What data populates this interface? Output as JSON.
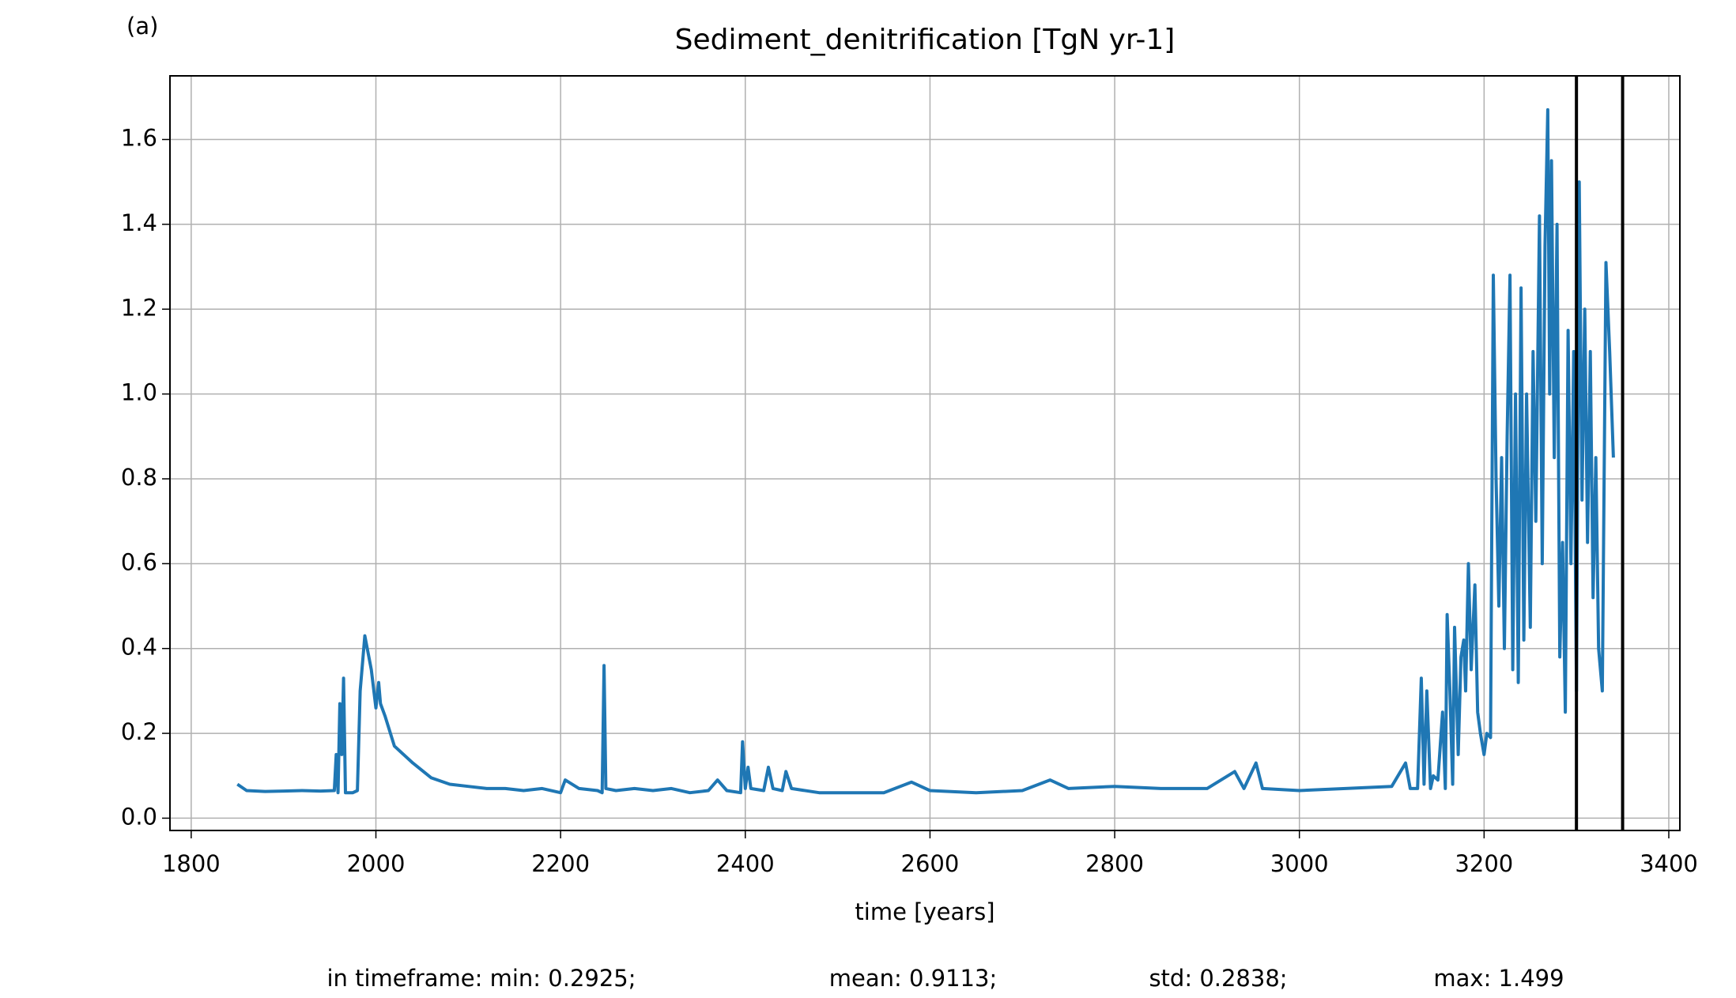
{
  "chart_data": {
    "type": "line",
    "title": "Sediment_denitrification [TgN yr-1]",
    "panel_label": "(a)",
    "x_label": "time [years]",
    "annotations": [
      "in timeframe: min: 0.2925;",
      "mean: 0.9113;",
      "std: 0.2838;",
      "max: 1.499"
    ],
    "x": [
      1850,
      1860,
      1880,
      1900,
      1920,
      1940,
      1955,
      1957,
      1959,
      1961,
      1963,
      1965,
      1967,
      1975,
      1980,
      1983,
      1988,
      1995,
      2000,
      2003,
      2005,
      2010,
      2020,
      2040,
      2060,
      2080,
      2100,
      2120,
      2140,
      2160,
      2180,
      2200,
      2205,
      2220,
      2240,
      2245,
      2247,
      2249,
      2260,
      2280,
      2300,
      2320,
      2340,
      2360,
      2370,
      2380,
      2395,
      2397,
      2400,
      2403,
      2406,
      2420,
      2425,
      2430,
      2440,
      2444,
      2450,
      2480,
      2500,
      2550,
      2580,
      2600,
      2650,
      2700,
      2730,
      2750,
      2800,
      2850,
      2900,
      2930,
      2940,
      2953,
      2960,
      3000,
      3050,
      3100,
      3115,
      3120,
      3128,
      3132,
      3135,
      3138,
      3142,
      3145,
      3150,
      3155,
      3158,
      3160,
      3163,
      3166,
      3168,
      3172,
      3175,
      3178,
      3180,
      3183,
      3186,
      3190,
      3193,
      3196,
      3200,
      3203,
      3207,
      3210,
      3213,
      3216,
      3219,
      3222,
      3225,
      3228,
      3231,
      3234,
      3237,
      3240,
      3243,
      3246,
      3250,
      3253,
      3256,
      3260,
      3263,
      3266,
      3269,
      3271,
      3273,
      3276,
      3279,
      3282,
      3285,
      3288,
      3291,
      3294,
      3297,
      3300,
      3303,
      3306,
      3309,
      3312,
      3315,
      3318,
      3321,
      3324,
      3328,
      3332,
      3336,
      3340
    ],
    "series": [
      {
        "name": "Sediment_denitrification",
        "color": "#1f77b4",
        "values": [
          0.08,
          0.065,
          0.063,
          0.064,
          0.065,
          0.064,
          0.065,
          0.15,
          0.06,
          0.27,
          0.15,
          0.33,
          0.06,
          0.06,
          0.065,
          0.3,
          0.43,
          0.35,
          0.26,
          0.32,
          0.27,
          0.24,
          0.17,
          0.13,
          0.095,
          0.08,
          0.075,
          0.07,
          0.07,
          0.065,
          0.07,
          0.06,
          0.09,
          0.07,
          0.065,
          0.06,
          0.36,
          0.07,
          0.065,
          0.07,
          0.065,
          0.07,
          0.06,
          0.065,
          0.09,
          0.065,
          0.06,
          0.18,
          0.07,
          0.12,
          0.07,
          0.065,
          0.12,
          0.07,
          0.065,
          0.11,
          0.07,
          0.06,
          0.06,
          0.06,
          0.085,
          0.065,
          0.06,
          0.065,
          0.09,
          0.07,
          0.075,
          0.07,
          0.07,
          0.11,
          0.07,
          0.13,
          0.07,
          0.065,
          0.07,
          0.075,
          0.13,
          0.07,
          0.07,
          0.33,
          0.08,
          0.3,
          0.07,
          0.1,
          0.09,
          0.25,
          0.07,
          0.48,
          0.3,
          0.08,
          0.45,
          0.15,
          0.38,
          0.42,
          0.3,
          0.6,
          0.35,
          0.55,
          0.25,
          0.2,
          0.15,
          0.2,
          0.19,
          1.28,
          0.8,
          0.5,
          0.85,
          0.4,
          0.9,
          1.28,
          0.35,
          1.0,
          0.32,
          1.25,
          0.42,
          1.0,
          0.45,
          1.1,
          0.7,
          1.42,
          0.6,
          1.35,
          1.67,
          1.0,
          1.55,
          0.85,
          1.4,
          0.38,
          0.65,
          0.25,
          1.15,
          0.6,
          1.1,
          0.3,
          1.5,
          0.75,
          1.2,
          0.65,
          1.1,
          0.52,
          0.85,
          0.4,
          0.3,
          1.31,
          1.1,
          0.85
        ]
      }
    ],
    "vlines": [
      3300,
      3350
    ],
    "vline_color": "#000000",
    "xlim": [
      1777,
      3412
    ],
    "xticks": [
      1800,
      2000,
      2200,
      2400,
      2600,
      2800,
      3000,
      3200,
      3400
    ],
    "ylim": [
      -0.029,
      1.75
    ],
    "yticks": [
      {
        "value": 0,
        "label": "0.0"
      },
      0.2,
      0.4,
      0.6,
      0.8,
      {
        "value": 1,
        "label": "1.0"
      },
      1.2,
      1.4,
      1.6
    ],
    "grid": true
  }
}
